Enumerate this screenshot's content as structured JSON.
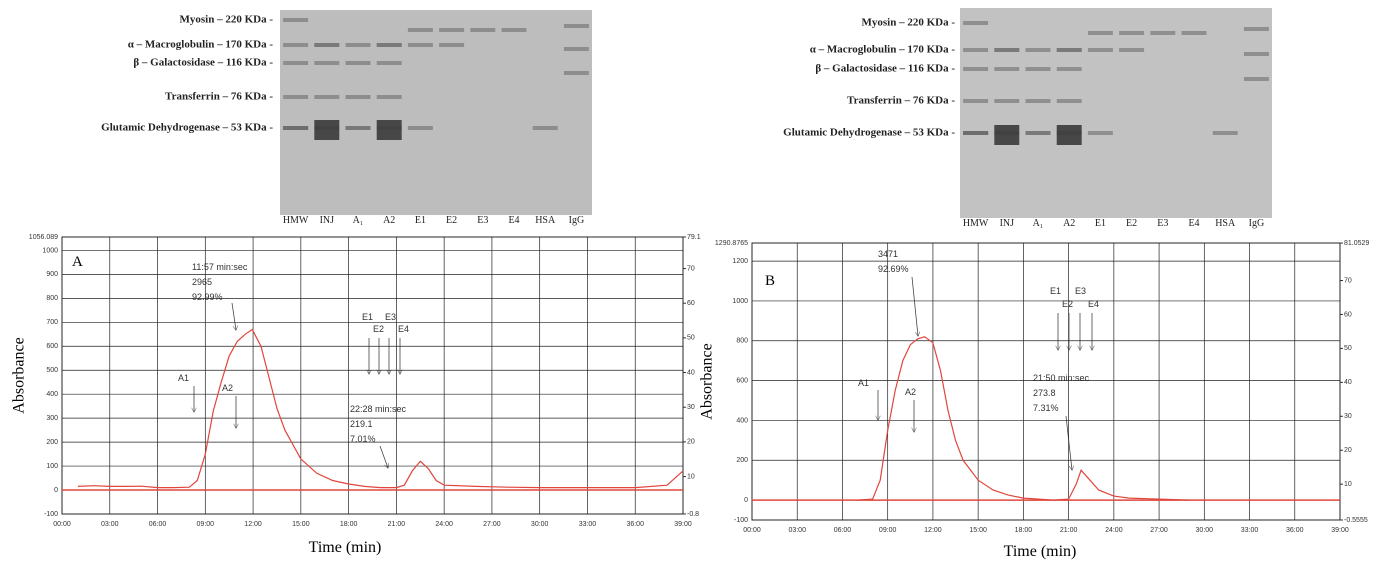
{
  "gels": [
    {
      "markers": [
        "Myosin – 220 KDa -",
        "α – Macroglobulin – 170 KDa -",
        "β – Galactosidase – 116 KDa -",
        "Transferrin – 76 KDa -",
        "Glutamic Dehydrogenase – 53 KDa -"
      ],
      "lanes": [
        "HMW",
        "INJ",
        "A₁",
        "A2",
        "E1",
        "E2",
        "E3",
        "E4",
        "HSA",
        "IgG"
      ]
    },
    {
      "markers": [
        "Myosin – 220 KDa -",
        "α – Macroglobulin – 170 KDa -",
        "β – Galactosidase – 116 KDa -",
        "Transferrin – 76 KDa -",
        "Glutamic Dehydrogenase – 53 KDa -"
      ],
      "lanes": [
        "HMW",
        "INJ",
        "A₁",
        "A2",
        "E1",
        "E2",
        "E3",
        "E4",
        "HSA",
        "IgG"
      ]
    }
  ],
  "chart_data": [
    {
      "type": "line",
      "panel": "A",
      "xlabel": "Time (min)",
      "ylabel": "Absorbance",
      "x": [
        1,
        2,
        3,
        4,
        5,
        6,
        7,
        8,
        8.5,
        9,
        9.5,
        10,
        10.5,
        11,
        11.5,
        11.95,
        12.5,
        13,
        13.5,
        14,
        15,
        16,
        17,
        18,
        19,
        20,
        21,
        21.5,
        22,
        22.5,
        23,
        23.5,
        24,
        26,
        28,
        30,
        33,
        36,
        38,
        38.5,
        39
      ],
      "series": [
        {
          "color": "#e0463c",
          "values": [
            15,
            18,
            15,
            15,
            16,
            10,
            10,
            12,
            40,
            150,
            330,
            450,
            560,
            620,
            650,
            670,
            600,
            470,
            340,
            250,
            130,
            70,
            40,
            25,
            15,
            10,
            10,
            20,
            80,
            120,
            90,
            40,
            20,
            15,
            12,
            10,
            10,
            10,
            20,
            50,
            80
          ]
        }
      ],
      "xlim": [
        0,
        39
      ],
      "xticks": [
        {
          "value": 0,
          "label": "00:00"
        },
        {
          "value": 3,
          "label": "03:00"
        },
        {
          "value": 6,
          "label": "06:00"
        },
        {
          "value": 9,
          "label": "09:00"
        },
        {
          "value": 12,
          "label": "12:00"
        },
        {
          "value": 15,
          "label": "15:00"
        },
        {
          "value": 18,
          "label": "18:00"
        },
        {
          "value": 21,
          "label": "21:00"
        },
        {
          "value": 24,
          "label": "24:00"
        },
        {
          "value": 27,
          "label": "27:00"
        },
        {
          "value": 30,
          "label": "30:00"
        },
        {
          "value": 33,
          "label": "33:00"
        },
        {
          "value": 36,
          "label": "36:00"
        },
        {
          "value": 39,
          "label": "39:00"
        }
      ],
      "ylim": [
        -100,
        1056.089
      ],
      "yticks": [
        -100,
        0,
        100,
        200,
        300,
        400,
        500,
        600,
        700,
        800,
        900,
        1000,
        1056.089
      ],
      "y2lim": [
        -0.8,
        79.1
      ],
      "y2ticks": [
        -0.8,
        10,
        20,
        30,
        40,
        50,
        60,
        70,
        79.1
      ],
      "grid": true,
      "annotations": [
        "A",
        "11:57 min:sec",
        "2965",
        "92.99%",
        "A1",
        "A2",
        "E1",
        "E3",
        "E2",
        "E4",
        "22:28 min:sec",
        "219.1",
        "7.01%"
      ]
    },
    {
      "type": "line",
      "panel": "B",
      "xlabel": "Time (min)",
      "ylabel": "Absorbance",
      "x": [
        7,
        8,
        8.5,
        9,
        9.5,
        10,
        10.5,
        11,
        11.45,
        12,
        12.5,
        13,
        13.5,
        14,
        15,
        16,
        17,
        18,
        19,
        20,
        21,
        21.5,
        21.83,
        22.3,
        23,
        24,
        25,
        27,
        29
      ],
      "series": [
        {
          "color": "#e0463c",
          "values": [
            0,
            5,
            100,
            350,
            550,
            700,
            780,
            810,
            820,
            790,
            650,
            450,
            300,
            200,
            100,
            50,
            25,
            10,
            5,
            0,
            5,
            80,
            150,
            110,
            50,
            20,
            10,
            5,
            0
          ]
        }
      ],
      "xlim": [
        0,
        39
      ],
      "xticks": [
        {
          "value": 0,
          "label": "00:00"
        },
        {
          "value": 3,
          "label": "03:00"
        },
        {
          "value": 6,
          "label": "06:00"
        },
        {
          "value": 9,
          "label": "09:00"
        },
        {
          "value": 12,
          "label": "12:00"
        },
        {
          "value": 15,
          "label": "15:00"
        },
        {
          "value": 18,
          "label": "18:00"
        },
        {
          "value": 21,
          "label": "21:00"
        },
        {
          "value": 24,
          "label": "24:00"
        },
        {
          "value": 27,
          "label": "27:00"
        },
        {
          "value": 30,
          "label": "30:00"
        },
        {
          "value": 33,
          "label": "33:00"
        },
        {
          "value": 36,
          "label": "36:00"
        },
        {
          "value": 39,
          "label": "39:00"
        }
      ],
      "ylim": [
        -100,
        1290.8765
      ],
      "yticks": [
        -100,
        0,
        200,
        400,
        600,
        800,
        1000,
        1200,
        1290.8765
      ],
      "y2lim": [
        -0.5555,
        81.0529
      ],
      "y2ticks": [
        -0.5555,
        10,
        20,
        30,
        40,
        50,
        60,
        70,
        81.0529
      ],
      "grid": true,
      "annotations": [
        "B",
        "3471",
        "92.69%",
        "A1",
        "A2",
        "E1",
        "E3",
        "E2",
        "E4",
        "21:50 min:sec",
        "273.8",
        "7.31%"
      ]
    }
  ]
}
